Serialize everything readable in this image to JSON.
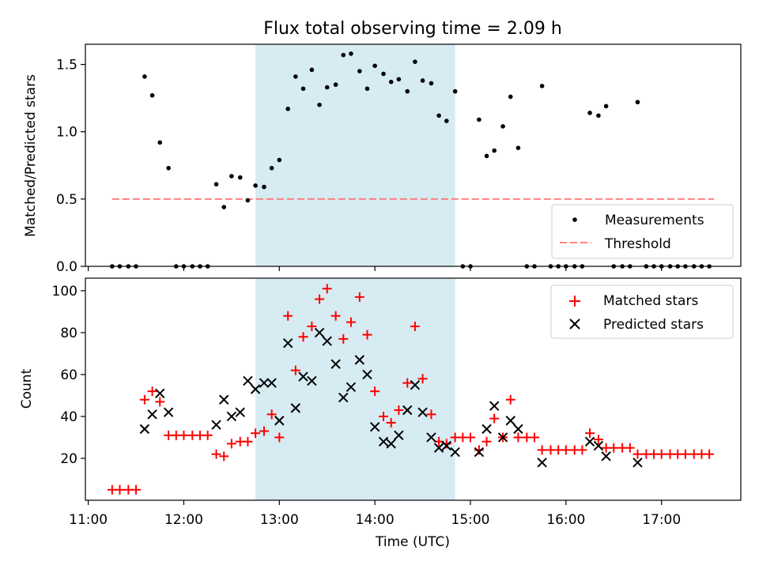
{
  "chart_data": {
    "title": "Flux total observing time = 2.09 h",
    "xlabel": "Time (UTC)",
    "x_tick_labels": [
      "11:00",
      "12:00",
      "13:00",
      "14:00",
      "15:00",
      "16:00",
      "17:00"
    ],
    "x_ticks_hours": [
      11,
      12,
      13,
      14,
      15,
      16,
      17
    ],
    "xlim_hours": [
      10.97,
      17.83
    ],
    "highlight_span_hours": [
      12.75,
      14.84
    ],
    "colors": {
      "highlight": "#add8e6",
      "threshold": "#ff8080",
      "matched": "#ff0000",
      "predicted": "#000000",
      "measurement": "#000000"
    },
    "panels": [
      {
        "type": "scatter",
        "ylabel": "Matched/Predicted stars",
        "ylim": [
          0.0,
          1.65
        ],
        "y_ticks": [
          0.0,
          0.5,
          1.0,
          1.5
        ],
        "y_tick_labels": [
          "0.0",
          "0.5",
          "1.0",
          "1.5"
        ],
        "threshold": {
          "value": 0.5,
          "x_range_hours": [
            11.25,
            17.55
          ]
        },
        "legend": {
          "position": "lower right",
          "items": [
            {
              "label": "Measurements",
              "marker": "dot"
            },
            {
              "label": "Threshold",
              "marker": "dashed-line"
            }
          ]
        },
        "series": [
          {
            "name": "Measurements",
            "points": [
              [
                11.25,
                0
              ],
              [
                11.33,
                0
              ],
              [
                11.42,
                0
              ],
              [
                11.5,
                0
              ],
              [
                11.59,
                1.41
              ],
              [
                11.67,
                1.27
              ],
              [
                11.75,
                0.92
              ],
              [
                11.84,
                0.73
              ],
              [
                11.92,
                0
              ],
              [
                12.0,
                0
              ],
              [
                12.09,
                0
              ],
              [
                12.17,
                0
              ],
              [
                12.25,
                0
              ],
              [
                12.34,
                0.61
              ],
              [
                12.42,
                0.44
              ],
              [
                12.5,
                0.67
              ],
              [
                12.59,
                0.66
              ],
              [
                12.67,
                0.49
              ],
              [
                12.75,
                0.6
              ],
              [
                12.84,
                0.59
              ],
              [
                12.92,
                0.73
              ],
              [
                13.0,
                0.79
              ],
              [
                13.09,
                1.17
              ],
              [
                13.17,
                1.41
              ],
              [
                13.25,
                1.32
              ],
              [
                13.34,
                1.46
              ],
              [
                13.42,
                1.2
              ],
              [
                13.5,
                1.33
              ],
              [
                13.59,
                1.35
              ],
              [
                13.67,
                1.57
              ],
              [
                13.75,
                1.58
              ],
              [
                13.84,
                1.45
              ],
              [
                13.92,
                1.32
              ],
              [
                14.0,
                1.49
              ],
              [
                14.09,
                1.43
              ],
              [
                14.17,
                1.37
              ],
              [
                14.25,
                1.39
              ],
              [
                14.34,
                1.3
              ],
              [
                14.42,
                1.52
              ],
              [
                14.5,
                1.38
              ],
              [
                14.59,
                1.36
              ],
              [
                14.67,
                1.12
              ],
              [
                14.75,
                1.08
              ],
              [
                14.84,
                1.3
              ],
              [
                14.92,
                0
              ],
              [
                15.0,
                0
              ],
              [
                15.09,
                1.09
              ],
              [
                15.17,
                0.82
              ],
              [
                15.25,
                0.86
              ],
              [
                15.34,
                1.04
              ],
              [
                15.42,
                1.26
              ],
              [
                15.5,
                0.88
              ],
              [
                15.59,
                0
              ],
              [
                15.67,
                0
              ],
              [
                15.75,
                1.34
              ],
              [
                15.84,
                0
              ],
              [
                15.92,
                0
              ],
              [
                16.0,
                0
              ],
              [
                16.09,
                0
              ],
              [
                16.17,
                0
              ],
              [
                16.25,
                1.14
              ],
              [
                16.34,
                1.12
              ],
              [
                16.42,
                1.19
              ],
              [
                16.5,
                0
              ],
              [
                16.59,
                0
              ],
              [
                16.67,
                0
              ],
              [
                16.75,
                1.22
              ],
              [
                16.84,
                0
              ],
              [
                16.92,
                0
              ],
              [
                17.0,
                0
              ],
              [
                17.09,
                0
              ],
              [
                17.17,
                0
              ],
              [
                17.25,
                0
              ],
              [
                17.34,
                0
              ],
              [
                17.42,
                0
              ],
              [
                17.5,
                0
              ]
            ]
          }
        ]
      },
      {
        "type": "scatter",
        "ylabel": "Count",
        "ylim": [
          0,
          106
        ],
        "y_ticks": [
          20,
          40,
          60,
          80,
          100
        ],
        "y_tick_labels": [
          "20",
          "40",
          "60",
          "80",
          "100"
        ],
        "legend": {
          "position": "upper right",
          "items": [
            {
              "label": "Matched stars",
              "marker": "plus"
            },
            {
              "label": "Predicted stars",
              "marker": "x"
            }
          ]
        },
        "series": [
          {
            "name": "Matched stars",
            "marker": "plus",
            "points": [
              [
                11.25,
                5
              ],
              [
                11.33,
                5
              ],
              [
                11.42,
                5
              ],
              [
                11.5,
                5
              ],
              [
                11.59,
                48
              ],
              [
                11.67,
                52
              ],
              [
                11.75,
                47
              ],
              [
                11.84,
                31
              ],
              [
                11.92,
                31
              ],
              [
                12.0,
                31
              ],
              [
                12.09,
                31
              ],
              [
                12.17,
                31
              ],
              [
                12.25,
                31
              ],
              [
                12.34,
                22
              ],
              [
                12.42,
                21
              ],
              [
                12.5,
                27
              ],
              [
                12.59,
                28
              ],
              [
                12.67,
                28
              ],
              [
                12.75,
                32
              ],
              [
                12.84,
                33
              ],
              [
                12.92,
                41
              ],
              [
                13.0,
                30
              ],
              [
                13.09,
                88
              ],
              [
                13.17,
                62
              ],
              [
                13.25,
                78
              ],
              [
                13.34,
                83
              ],
              [
                13.42,
                96
              ],
              [
                13.5,
                101
              ],
              [
                13.59,
                88
              ],
              [
                13.67,
                77
              ],
              [
                13.75,
                85
              ],
              [
                13.84,
                97
              ],
              [
                13.92,
                79
              ],
              [
                14.0,
                52
              ],
              [
                14.09,
                40
              ],
              [
                14.17,
                37
              ],
              [
                14.25,
                43
              ],
              [
                14.34,
                56
              ],
              [
                14.42,
                83
              ],
              [
                14.5,
                58
              ],
              [
                14.59,
                41
              ],
              [
                14.67,
                28
              ],
              [
                14.75,
                27
              ],
              [
                14.84,
                30
              ],
              [
                14.92,
                30
              ],
              [
                15.0,
                30
              ],
              [
                15.09,
                24
              ],
              [
                15.17,
                28
              ],
              [
                15.25,
                39
              ],
              [
                15.34,
                30
              ],
              [
                15.42,
                48
              ],
              [
                15.5,
                30
              ],
              [
                15.59,
                30
              ],
              [
                15.67,
                30
              ],
              [
                15.75,
                24
              ],
              [
                15.84,
                24
              ],
              [
                15.92,
                24
              ],
              [
                16.0,
                24
              ],
              [
                16.09,
                24
              ],
              [
                16.17,
                24
              ],
              [
                16.25,
                32
              ],
              [
                16.34,
                29
              ],
              [
                16.42,
                25
              ],
              [
                16.5,
                25
              ],
              [
                16.59,
                25
              ],
              [
                16.67,
                25
              ],
              [
                16.75,
                22
              ],
              [
                16.84,
                22
              ],
              [
                16.92,
                22
              ],
              [
                17.0,
                22
              ],
              [
                17.09,
                22
              ],
              [
                17.17,
                22
              ],
              [
                17.25,
                22
              ],
              [
                17.34,
                22
              ],
              [
                17.42,
                22
              ],
              [
                17.5,
                22
              ]
            ]
          },
          {
            "name": "Predicted stars",
            "marker": "x",
            "points": [
              [
                11.59,
                34
              ],
              [
                11.67,
                41
              ],
              [
                11.75,
                51
              ],
              [
                11.84,
                42
              ],
              [
                12.34,
                36
              ],
              [
                12.42,
                48
              ],
              [
                12.5,
                40
              ],
              [
                12.59,
                42
              ],
              [
                12.67,
                57
              ],
              [
                12.75,
                53
              ],
              [
                12.84,
                56
              ],
              [
                12.92,
                56
              ],
              [
                13.0,
                38
              ],
              [
                13.09,
                75
              ],
              [
                13.17,
                44
              ],
              [
                13.25,
                59
              ],
              [
                13.34,
                57
              ],
              [
                13.42,
                80
              ],
              [
                13.5,
                76
              ],
              [
                13.59,
                65
              ],
              [
                13.67,
                49
              ],
              [
                13.75,
                54
              ],
              [
                13.84,
                67
              ],
              [
                13.92,
                60
              ],
              [
                14.0,
                35
              ],
              [
                14.09,
                28
              ],
              [
                14.17,
                27
              ],
              [
                14.25,
                31
              ],
              [
                14.34,
                43
              ],
              [
                14.42,
                55
              ],
              [
                14.5,
                42
              ],
              [
                14.59,
                30
              ],
              [
                14.67,
                25
              ],
              [
                14.75,
                26
              ],
              [
                14.84,
                23
              ],
              [
                15.09,
                23
              ],
              [
                15.17,
                34
              ],
              [
                15.25,
                45
              ],
              [
                15.34,
                30
              ],
              [
                15.42,
                38
              ],
              [
                15.5,
                34
              ],
              [
                15.75,
                18
              ],
              [
                16.25,
                28
              ],
              [
                16.34,
                26
              ],
              [
                16.42,
                21
              ],
              [
                16.75,
                18
              ]
            ]
          }
        ]
      }
    ]
  }
}
